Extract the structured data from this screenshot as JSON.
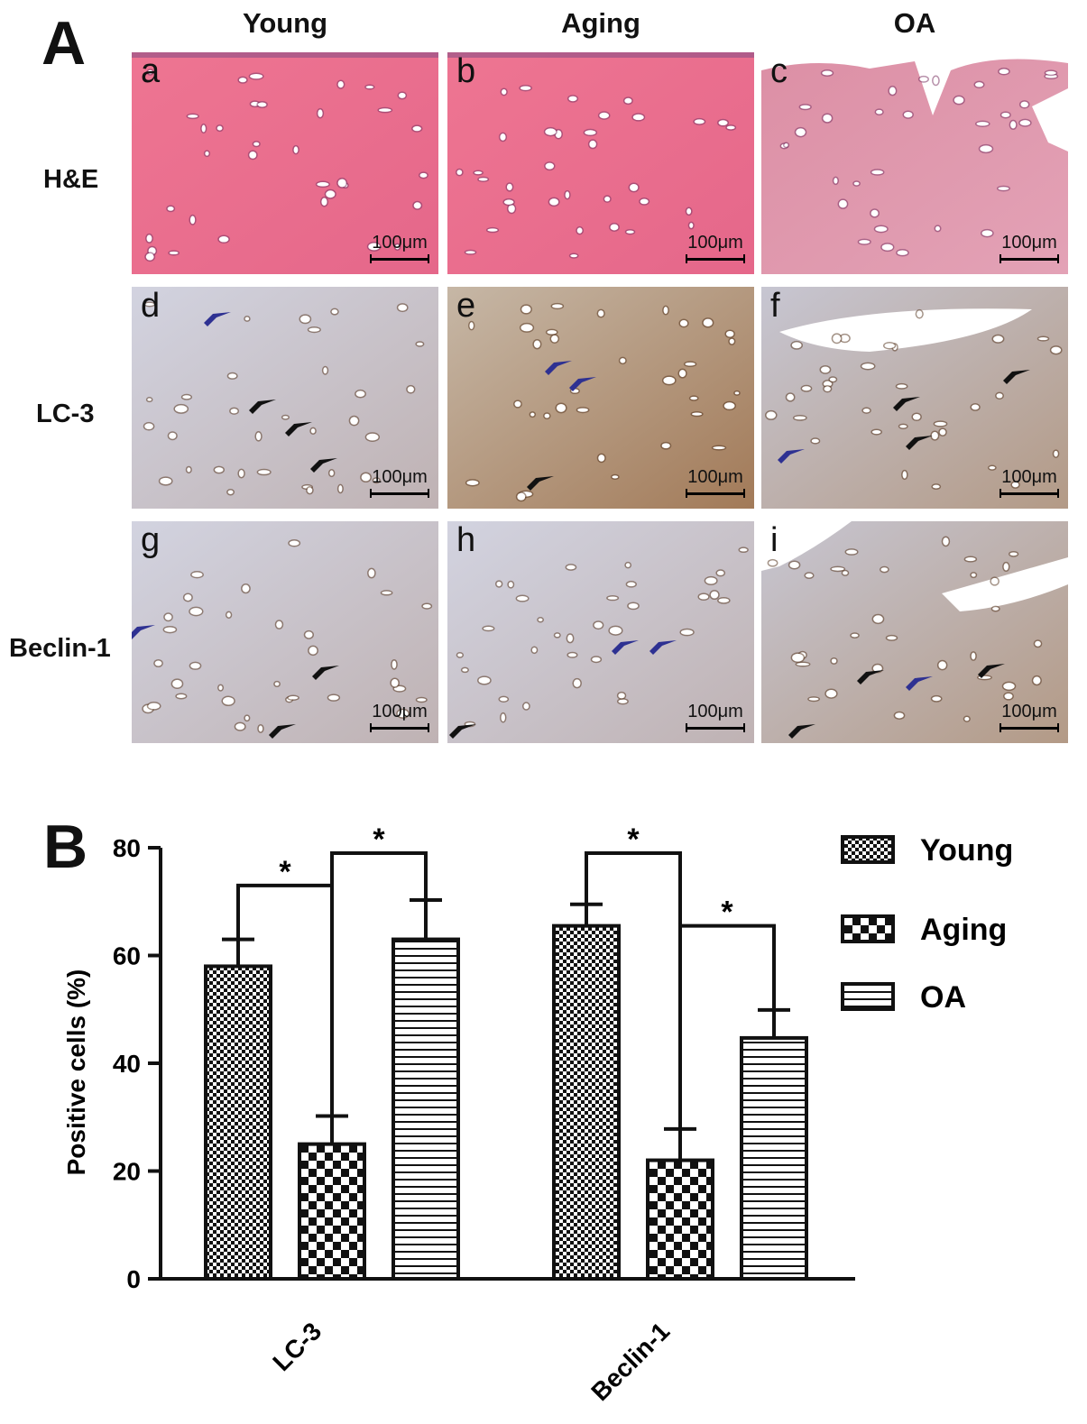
{
  "panel_a": {
    "letter": "A",
    "columns": [
      "Young",
      "Aging",
      "OA"
    ],
    "rows": [
      "H&E",
      "LC-3",
      "Beclin-1"
    ],
    "tiles": [
      {
        "letter": "a",
        "scale": "100μm",
        "stain": "he-young"
      },
      {
        "letter": "b",
        "scale": "100μm",
        "stain": "he-aging"
      },
      {
        "letter": "c",
        "scale": "100μm",
        "stain": "he-oa"
      },
      {
        "letter": "d",
        "scale": "100μm",
        "stain": "ihc-light"
      },
      {
        "letter": "e",
        "scale": "100μm",
        "stain": "ihc-brown"
      },
      {
        "letter": "f",
        "scale": "100μm",
        "stain": "ihc-mixed"
      },
      {
        "letter": "g",
        "scale": "100μm",
        "stain": "ihc-light"
      },
      {
        "letter": "h",
        "scale": "100μm",
        "stain": "ihc-light"
      },
      {
        "letter": "i",
        "scale": "100μm",
        "stain": "ihc-mixed"
      }
    ],
    "colors": {
      "he": "#e8708a",
      "ihc_base": "#c9c4cf",
      "ihc_brown": "#a8774f",
      "blue_arrow": "#2e3192",
      "black_arrow": "#111111"
    }
  },
  "panel_b": {
    "letter": "B",
    "chart_data": {
      "type": "bar",
      "categories": [
        "LC-3",
        "Beclin-1"
      ],
      "series": [
        {
          "name": "Young",
          "values": [
            58,
            65.5
          ],
          "errors": [
            5,
            4
          ],
          "pattern": "checker-fine"
        },
        {
          "name": "Aging",
          "values": [
            25,
            22
          ],
          "errors": [
            5.2,
            5.8
          ],
          "pattern": "checker-coarse"
        },
        {
          "name": "OA",
          "values": [
            63,
            44.7
          ],
          "errors": [
            7.3,
            5.2
          ],
          "pattern": "horizontal-lines"
        }
      ],
      "ylabel": "Positive cells (%)",
      "ylim": [
        0,
        80
      ],
      "yticks": [
        0,
        20,
        40,
        60,
        80
      ],
      "significance_label": "*",
      "significance": [
        {
          "category": 0,
          "from": 0,
          "to": 1,
          "level": 73
        },
        {
          "category": 0,
          "from": 1,
          "to": 2,
          "level": 79
        },
        {
          "category": 1,
          "from": 0,
          "to": 1,
          "level": 79
        },
        {
          "category": 1,
          "from": 1,
          "to": 2,
          "level": 65.5
        }
      ],
      "legend_position": "top-right"
    }
  }
}
